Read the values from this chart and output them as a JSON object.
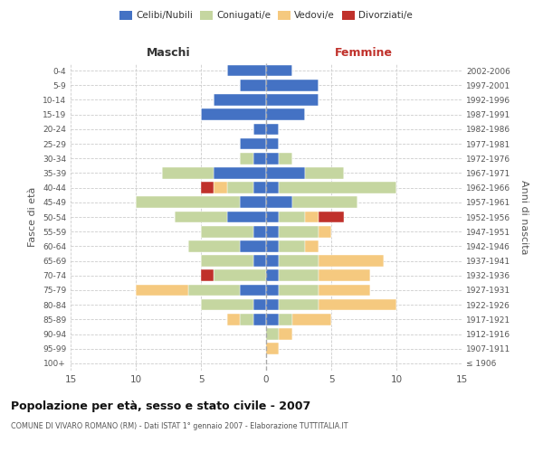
{
  "age_groups": [
    "100+",
    "95-99",
    "90-94",
    "85-89",
    "80-84",
    "75-79",
    "70-74",
    "65-69",
    "60-64",
    "55-59",
    "50-54",
    "45-49",
    "40-44",
    "35-39",
    "30-34",
    "25-29",
    "20-24",
    "15-19",
    "10-14",
    "5-9",
    "0-4"
  ],
  "birth_years": [
    "≤ 1906",
    "1907-1911",
    "1912-1916",
    "1917-1921",
    "1922-1926",
    "1927-1931",
    "1932-1936",
    "1937-1941",
    "1942-1946",
    "1947-1951",
    "1952-1956",
    "1957-1961",
    "1962-1966",
    "1967-1971",
    "1972-1976",
    "1977-1981",
    "1982-1986",
    "1987-1991",
    "1992-1996",
    "1997-2001",
    "2002-2006"
  ],
  "maschi": {
    "celibi": [
      0,
      0,
      0,
      1,
      1,
      2,
      0,
      1,
      2,
      1,
      3,
      2,
      1,
      4,
      1,
      2,
      1,
      5,
      4,
      2,
      3
    ],
    "coniugati": [
      0,
      0,
      0,
      1,
      4,
      4,
      4,
      4,
      4,
      4,
      4,
      8,
      2,
      4,
      1,
      0,
      0,
      0,
      0,
      0,
      0
    ],
    "vedovi": [
      0,
      0,
      0,
      1,
      0,
      4,
      0,
      0,
      0,
      0,
      0,
      0,
      1,
      0,
      0,
      0,
      0,
      0,
      0,
      0,
      0
    ],
    "divorziati": [
      0,
      0,
      0,
      0,
      0,
      0,
      1,
      0,
      0,
      0,
      0,
      0,
      1,
      0,
      0,
      0,
      0,
      0,
      0,
      0,
      0
    ]
  },
  "femmine": {
    "nubili": [
      0,
      0,
      0,
      1,
      1,
      1,
      1,
      1,
      1,
      1,
      1,
      2,
      1,
      3,
      1,
      1,
      1,
      3,
      4,
      4,
      2
    ],
    "coniugate": [
      0,
      0,
      1,
      1,
      3,
      3,
      3,
      3,
      2,
      3,
      2,
      5,
      9,
      3,
      1,
      0,
      0,
      0,
      0,
      0,
      0
    ],
    "vedove": [
      0,
      1,
      1,
      3,
      6,
      4,
      4,
      5,
      1,
      1,
      1,
      0,
      0,
      0,
      0,
      0,
      0,
      0,
      0,
      0,
      0
    ],
    "divorziate": [
      0,
      0,
      0,
      0,
      0,
      0,
      0,
      0,
      0,
      0,
      2,
      0,
      0,
      0,
      0,
      0,
      0,
      0,
      0,
      0,
      0
    ]
  },
  "colors": {
    "celibi": "#4472C4",
    "coniugati": "#C5D6A0",
    "vedovi": "#F5C97F",
    "divorziati": "#C0312B"
  },
  "xlim": 15,
  "title": "Popolazione per età, sesso e stato civile - 2007",
  "subtitle": "COMUNE DI VIVARO ROMANO (RM) - Dati ISTAT 1° gennaio 2007 - Elaborazione TUTTITALIA.IT",
  "ylabel_left": "Fasce di età",
  "ylabel_right": "Anni di nascita",
  "xlabel_left": "Maschi",
  "xlabel_right": "Femmine",
  "legend_labels": [
    "Celibi/Nubili",
    "Coniugati/e",
    "Vedovi/e",
    "Divorziati/e"
  ],
  "bg_color": "#ffffff",
  "grid_color": "#cccccc",
  "text_color": "#555555"
}
